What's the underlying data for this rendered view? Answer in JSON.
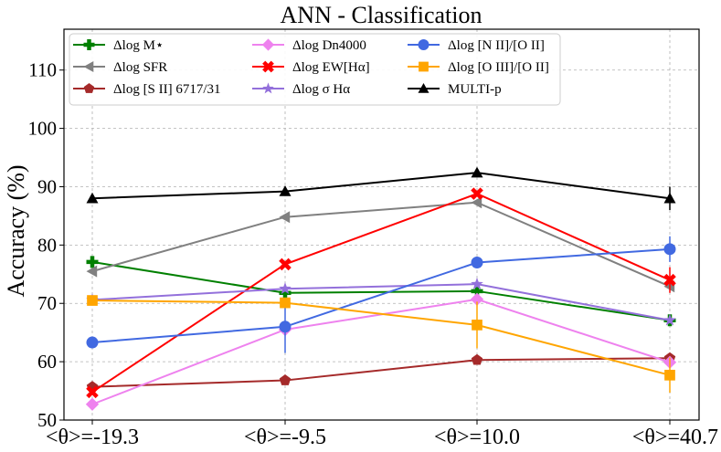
{
  "chart_data": {
    "type": "line",
    "title": "ANN - Classification",
    "xlabel": "",
    "ylabel": "Accuracy (%)",
    "ylim": [
      50,
      117
    ],
    "yticks": [
      50,
      60,
      70,
      80,
      90,
      100,
      110
    ],
    "categories": [
      "<θ>=-19.3",
      "<θ>=-9.5",
      "<θ>=10.0",
      "<θ>=40.7"
    ],
    "grid": true,
    "legend_position": "top-left",
    "series": [
      {
        "name": "Δlog M⋆",
        "color": "#008000",
        "marker": "plus",
        "values": [
          77.1,
          71.8,
          72.1,
          67.1
        ],
        "errors": [
          0,
          0,
          0,
          0
        ]
      },
      {
        "name": "Δlog SFR",
        "color": "#808080",
        "marker": "triangle-left",
        "values": [
          75.5,
          84.8,
          87.3,
          72.9
        ],
        "errors": [
          0,
          0,
          0,
          0
        ]
      },
      {
        "name": "Δlog [S II] 6717/31",
        "color": "#a52a2a",
        "marker": "pentagon",
        "values": [
          55.7,
          56.8,
          60.3,
          60.6
        ],
        "errors": [
          0,
          0,
          0,
          0
        ]
      },
      {
        "name": "Δlog Dn4000",
        "color": "#ee82ee",
        "marker": "diamond",
        "values": [
          52.7,
          65.5,
          70.7,
          59.9
        ],
        "errors": [
          0,
          0,
          0,
          0
        ]
      },
      {
        "name": "Δlog EW[Hα]",
        "color": "#ff0000",
        "marker": "x",
        "values": [
          54.8,
          76.7,
          88.8,
          74.0
        ],
        "errors": [
          0,
          0,
          0,
          2.2
        ]
      },
      {
        "name": "Δlog σ Hα",
        "color": "#9370db",
        "marker": "star",
        "values": [
          70.6,
          72.5,
          73.3,
          67.1
        ],
        "errors": [
          0,
          0,
          0,
          0
        ]
      },
      {
        "name": "Δlog [N II]/[O II]",
        "color": "#4169e1",
        "marker": "circle",
        "values": [
          63.3,
          66.0,
          77.0,
          79.3
        ],
        "errors": [
          0,
          4.5,
          0,
          2.2
        ]
      },
      {
        "name": "Δlog [O III]/[O II]",
        "color": "#ffa500",
        "marker": "square",
        "values": [
          70.5,
          70.1,
          66.3,
          57.7
        ],
        "errors": [
          0,
          0,
          4.0,
          3.0
        ]
      },
      {
        "name": "MULTI-p",
        "color": "#000000",
        "marker": "triangle-up",
        "values": [
          88.0,
          89.2,
          92.4,
          88.0
        ],
        "errors": [
          0,
          0,
          0,
          2.0
        ]
      }
    ]
  }
}
